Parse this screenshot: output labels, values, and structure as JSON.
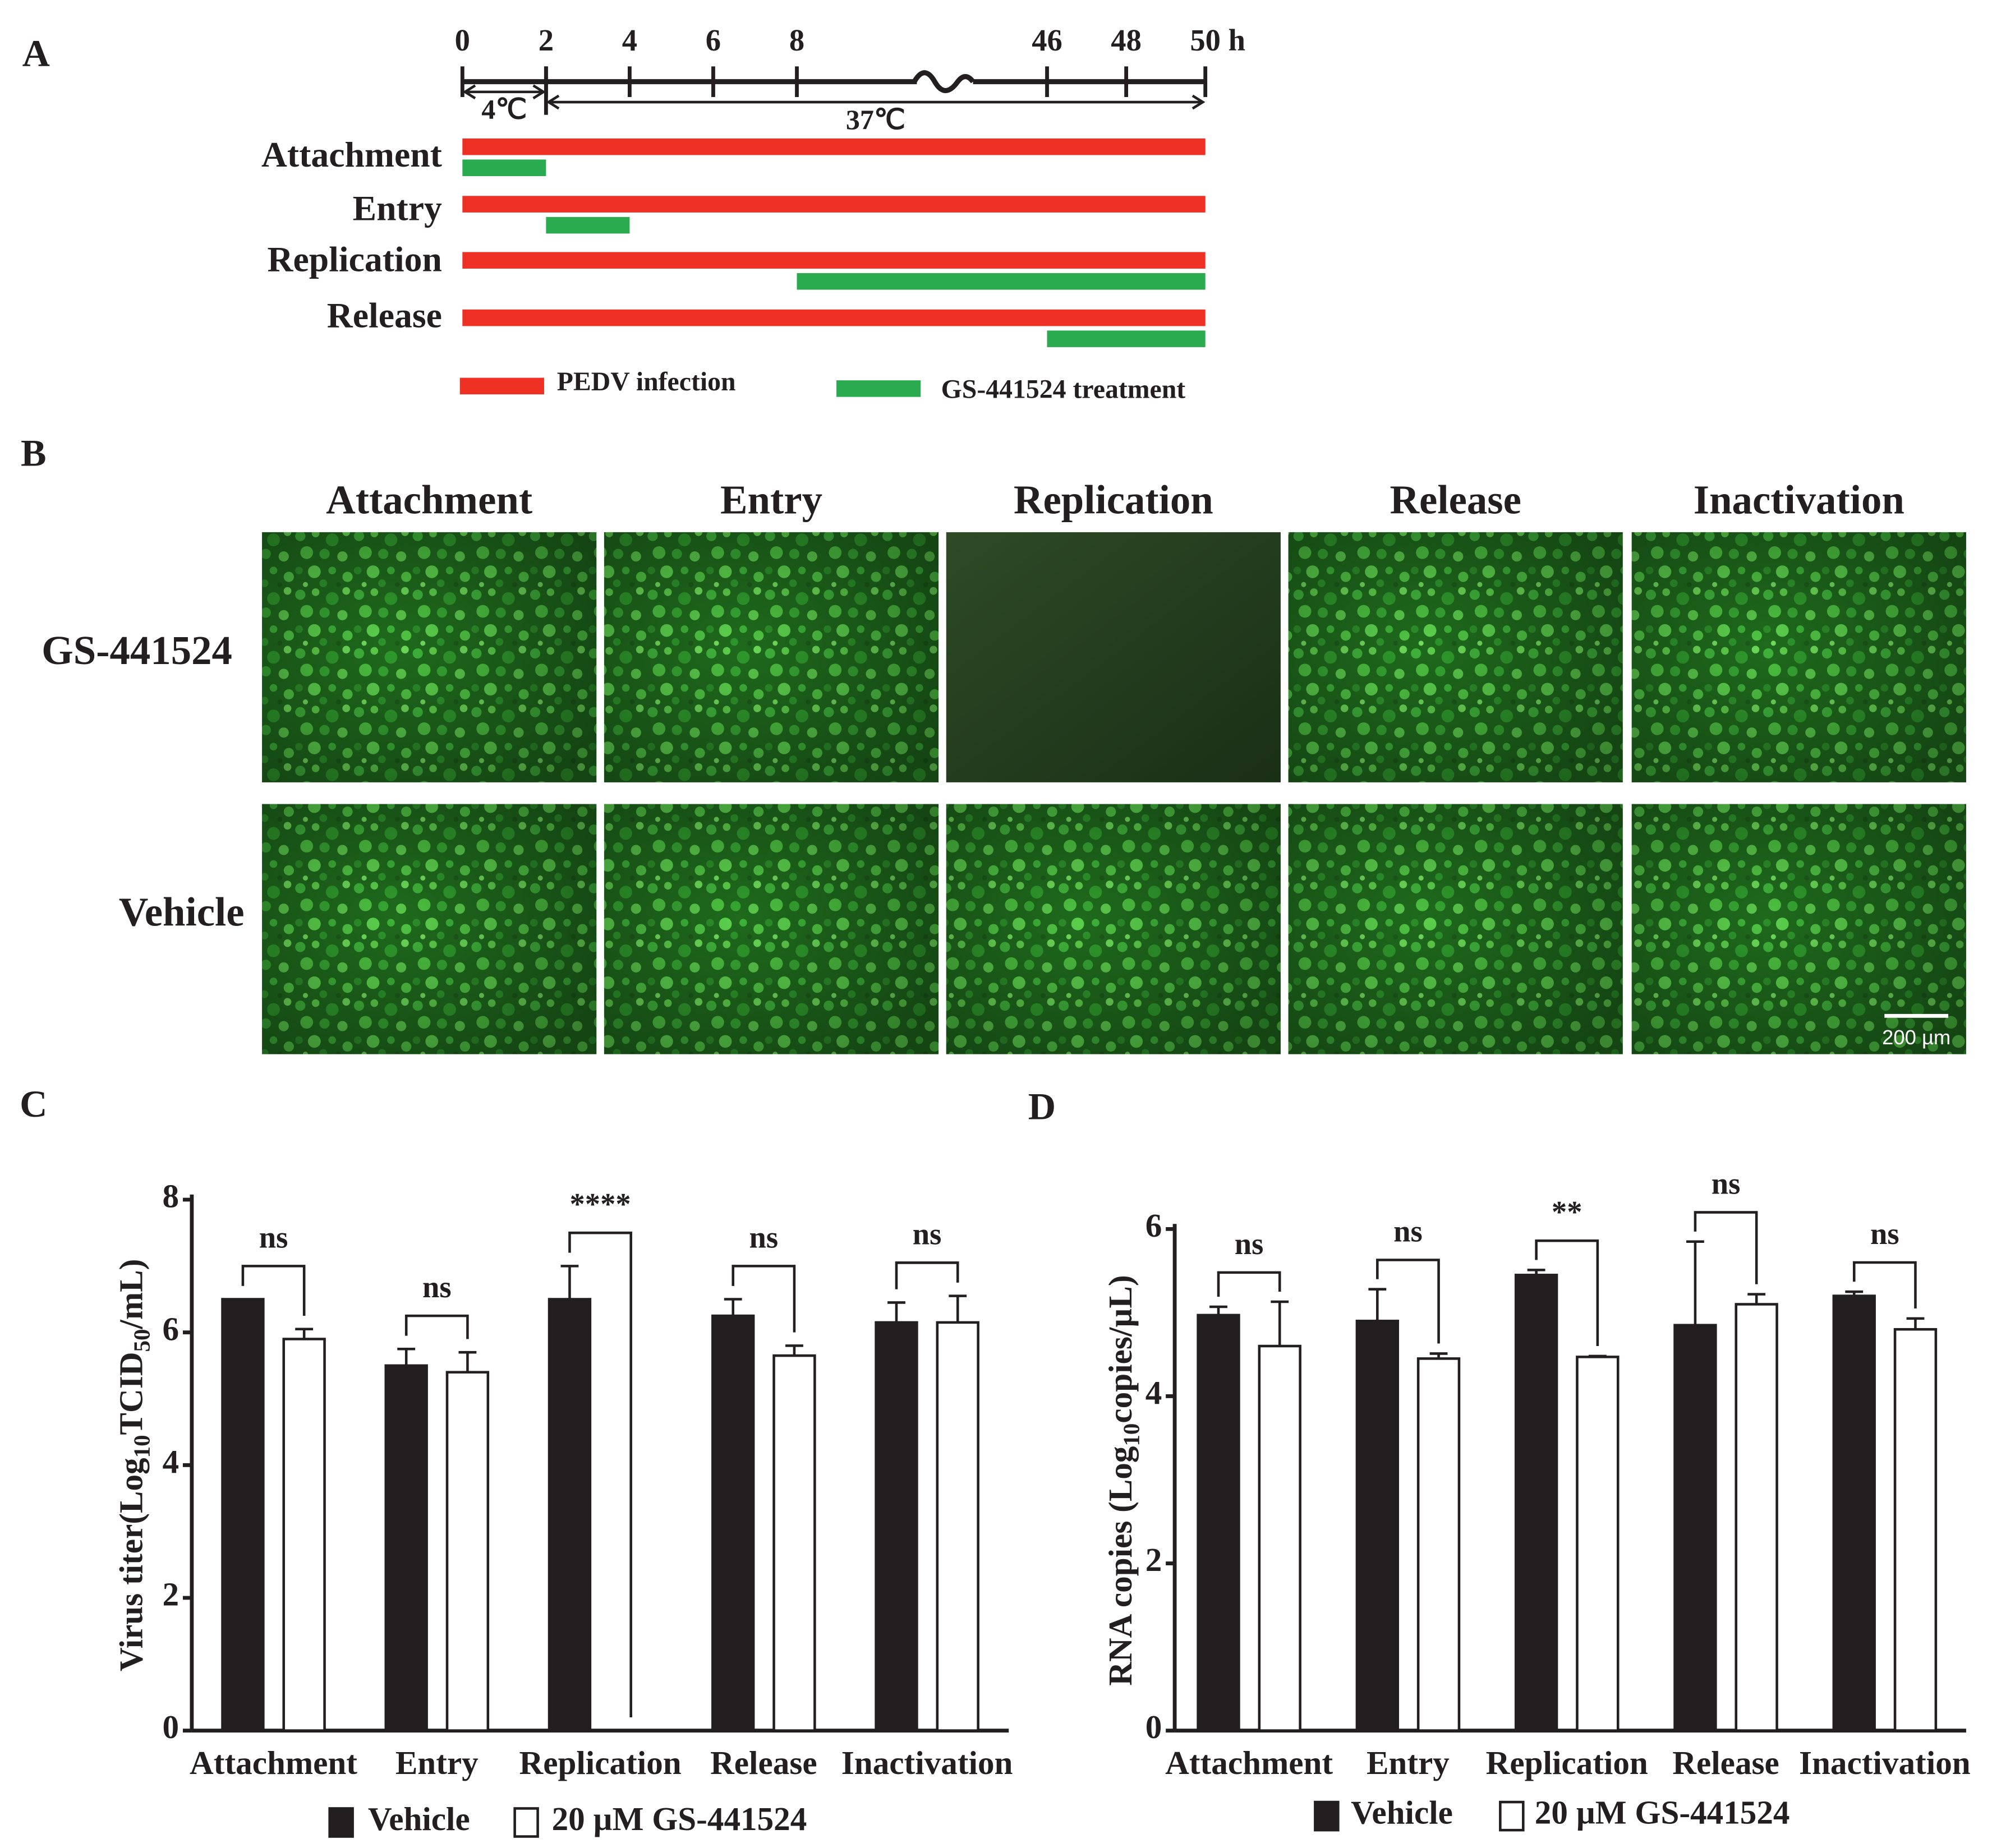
{
  "panel_labels": [
    "A",
    "B",
    "C",
    "D"
  ],
  "timeline": {
    "ticks": [
      0,
      2,
      4,
      6,
      8,
      46,
      48,
      50
    ],
    "unit": "h",
    "temperatures": [
      {
        "label": "4℃",
        "start": 0,
        "end": 2
      },
      {
        "label": "37℃",
        "start": 2,
        "end": 50
      }
    ],
    "rows": [
      {
        "label": "Attachment",
        "infection": [
          0,
          50
        ],
        "treatment": [
          0,
          2
        ]
      },
      {
        "label": "Entry",
        "infection": [
          0,
          50
        ],
        "treatment": [
          2,
          4
        ]
      },
      {
        "label": "Replication",
        "infection": [
          0,
          50
        ],
        "treatment": [
          8,
          50
        ]
      },
      {
        "label": "Release",
        "infection": [
          0,
          50
        ],
        "treatment": [
          46,
          50
        ]
      }
    ],
    "legend": {
      "infection": "PEDV infection",
      "treatment": "GS-441524 treatment"
    },
    "infection_color": "#ee3124",
    "treatment_color": "#2bab4f"
  },
  "images": {
    "columns": [
      "Attachment",
      "Entry",
      "Replication",
      "Release",
      "Inactivation"
    ],
    "rows": [
      "GS-441524",
      "Vehicle"
    ],
    "scale_bar": "200 µm"
  },
  "chart_data": [
    {
      "type": "bar",
      "categories": [
        "Attachment",
        "Entry",
        "Replication",
        "Release",
        "Inactivation"
      ],
      "series": [
        {
          "name": "Vehicle",
          "color": "#231f20",
          "values": [
            6.5,
            5.5,
            6.5,
            6.25,
            6.15
          ],
          "errors": [
            0,
            0.25,
            0.5,
            0.25,
            0.3
          ]
        },
        {
          "name": "20 µM GS-441524",
          "color": "#ffffff",
          "values": [
            5.9,
            5.4,
            0,
            5.65,
            6.15
          ],
          "errors": [
            0.15,
            0.3,
            0,
            0.15,
            0.4
          ]
        }
      ],
      "significance": [
        "ns",
        "ns",
        "****",
        "ns",
        "ns"
      ],
      "y_label_parts": [
        "Virus titer(Log",
        "10",
        "TCID",
        "50",
        "/mL)"
      ],
      "ylim": [
        0,
        8
      ],
      "yticks": [
        0,
        2,
        4,
        6,
        8
      ]
    },
    {
      "type": "bar",
      "categories": [
        "Attachment",
        "Entry",
        "Replication",
        "Release",
        "Inactivation"
      ],
      "series": [
        {
          "name": "Vehicle",
          "color": "#231f20",
          "values": [
            4.97,
            4.9,
            5.45,
            4.85,
            5.2
          ],
          "errors": [
            0.1,
            0.38,
            0.06,
            1.0,
            0.05
          ]
        },
        {
          "name": "20 µM GS-441524",
          "color": "#ffffff",
          "values": [
            4.6,
            4.45,
            4.47,
            5.1,
            4.8
          ],
          "errors": [
            0.53,
            0.06,
            0.01,
            0.12,
            0.13
          ]
        }
      ],
      "significance": [
        "ns",
        "ns",
        "**",
        "ns",
        "ns"
      ],
      "y_label_parts": [
        "RNA copies (Log",
        "10",
        "copies/µL)"
      ],
      "ylim": [
        0,
        6
      ],
      "yticks": [
        0,
        2,
        4,
        6
      ]
    }
  ]
}
